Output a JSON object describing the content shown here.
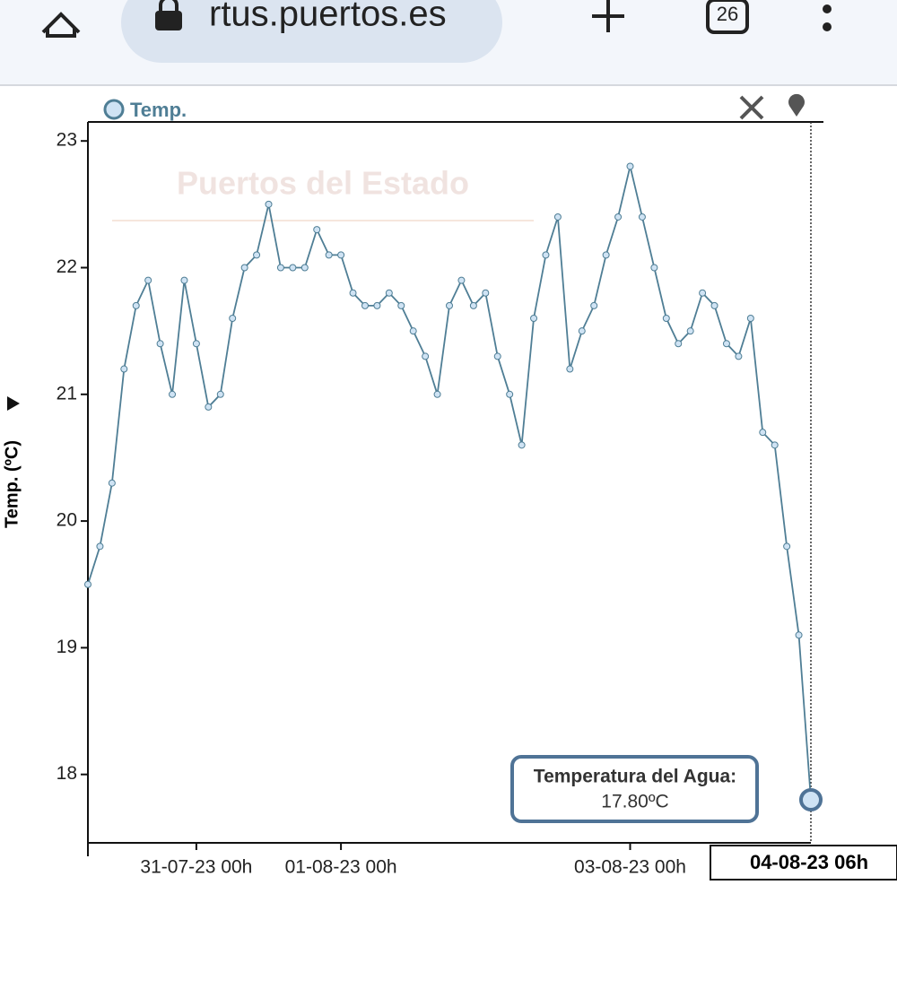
{
  "browser": {
    "url": "rtus.puertos.es",
    "tabs": "26"
  },
  "chart_data": {
    "type": "line",
    "watermark": "Puertos del Estado",
    "ylabel": "Temp. (ºC)",
    "x": [
      "30-07-23 06h",
      "30-07-23 08h",
      "30-07-23 10h",
      "30-07-23 12h",
      "30-07-23 14h",
      "30-07-23 16h",
      "30-07-23 18h",
      "30-07-23 20h",
      "30-07-23 22h",
      "31-07-23 00h",
      "31-07-23 02h",
      "31-07-23 04h",
      "31-07-23 06h",
      "31-07-23 08h",
      "31-07-23 10h",
      "31-07-23 12h",
      "31-07-23 14h",
      "31-07-23 16h",
      "31-07-23 18h",
      "31-07-23 20h",
      "31-07-23 22h",
      "01-08-23 00h",
      "01-08-23 02h",
      "01-08-23 04h",
      "01-08-23 06h",
      "01-08-23 08h",
      "01-08-23 10h",
      "01-08-23 12h",
      "01-08-23 14h",
      "01-08-23 16h",
      "01-08-23 18h",
      "01-08-23 20h",
      "01-08-23 22h",
      "02-08-23 00h",
      "02-08-23 02h",
      "02-08-23 04h",
      "02-08-23 06h",
      "02-08-23 08h",
      "02-08-23 10h",
      "02-08-23 12h",
      "02-08-23 14h",
      "02-08-23 16h",
      "02-08-23 18h",
      "02-08-23 20h",
      "02-08-23 22h",
      "03-08-23 00h",
      "03-08-23 02h",
      "03-08-23 04h",
      "03-08-23 06h",
      "03-08-23 08h",
      "03-08-23 10h",
      "03-08-23 12h",
      "03-08-23 14h",
      "03-08-23 16h",
      "03-08-23 18h",
      "03-08-23 20h",
      "03-08-23 22h",
      "04-08-23 00h",
      "04-08-23 02h",
      "04-08-23 04h",
      "04-08-23 06h"
    ],
    "series": [
      {
        "name": "Temp.",
        "color": "#4f7e95",
        "values": [
          19.5,
          19.8,
          20.3,
          21.2,
          21.7,
          21.9,
          21.4,
          21.0,
          21.9,
          21.4,
          20.9,
          21.0,
          21.6,
          22.0,
          22.1,
          22.5,
          22.0,
          22.0,
          22.0,
          22.3,
          22.1,
          22.1,
          21.8,
          21.7,
          21.7,
          21.8,
          21.7,
          21.5,
          21.3,
          21.0,
          21.7,
          21.9,
          21.7,
          21.8,
          21.3,
          21.0,
          20.6,
          21.6,
          22.1,
          22.4,
          21.2,
          21.5,
          21.7,
          22.1,
          22.4,
          22.8,
          22.4,
          22.0,
          21.6,
          21.4,
          21.5,
          21.8,
          21.7,
          21.4,
          21.3,
          21.6,
          20.7,
          20.6,
          19.8,
          19.1,
          17.8
        ]
      }
    ],
    "xlim": [
      "30-07-23 06h",
      "04-08-23 06h"
    ],
    "xticks": [
      "31-07-23 00h",
      "01-08-23 00h",
      "03-08-23 00h"
    ],
    "ylim": [
      17.46,
      23.15
    ],
    "yticks": [
      18,
      19,
      20,
      21,
      22,
      23
    ],
    "tooltip": {
      "title": "Temperatura del Agua:",
      "text": "17.80ºC"
    }
  }
}
